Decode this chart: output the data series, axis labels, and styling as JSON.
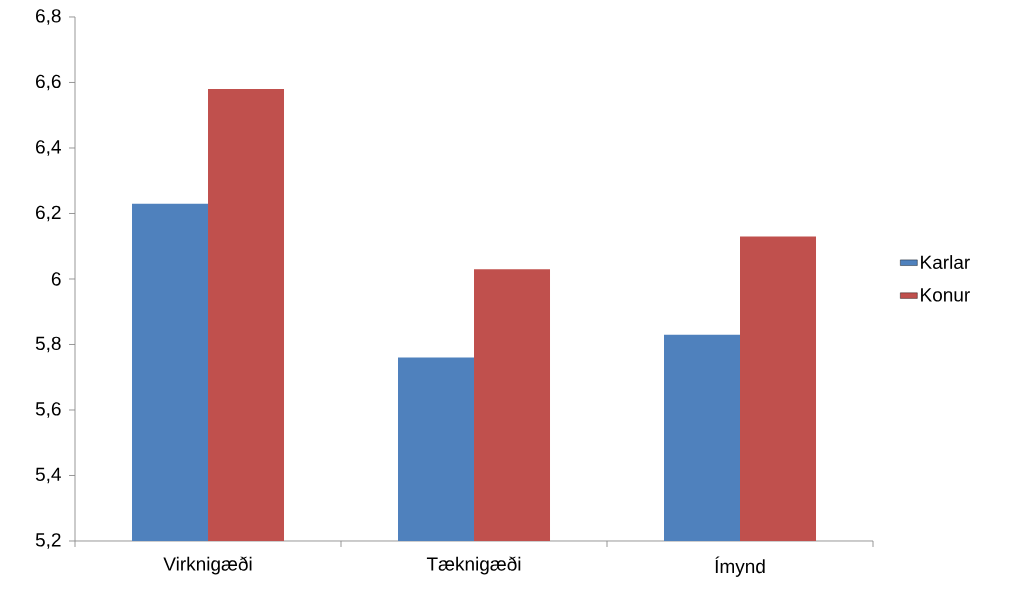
{
  "chart_data": {
    "type": "bar",
    "categories": [
      "Virknigæði",
      "Tæknigæði",
      "Ímynd"
    ],
    "series": [
      {
        "name": "Karlar",
        "color": "#4f81bd",
        "values": [
          6.23,
          5.76,
          5.83
        ]
      },
      {
        "name": "Konur",
        "color": "#c0504d",
        "values": [
          6.58,
          6.03,
          6.13
        ]
      }
    ],
    "ylim": [
      5.2,
      6.8
    ],
    "yticks": [
      {
        "value": 5.2,
        "label": "5,2"
      },
      {
        "value": 5.4,
        "label": "5,4"
      },
      {
        "value": 5.6,
        "label": "5,6"
      },
      {
        "value": 5.8,
        "label": "5,8"
      },
      6,
      {
        "value": 6.2,
        "label": "6,2"
      },
      {
        "value": 6.4,
        "label": "6,4"
      },
      {
        "value": 6.6,
        "label": "6,6"
      },
      {
        "value": 6.8,
        "label": "6,8"
      }
    ],
    "grid": false,
    "legend": "right"
  }
}
